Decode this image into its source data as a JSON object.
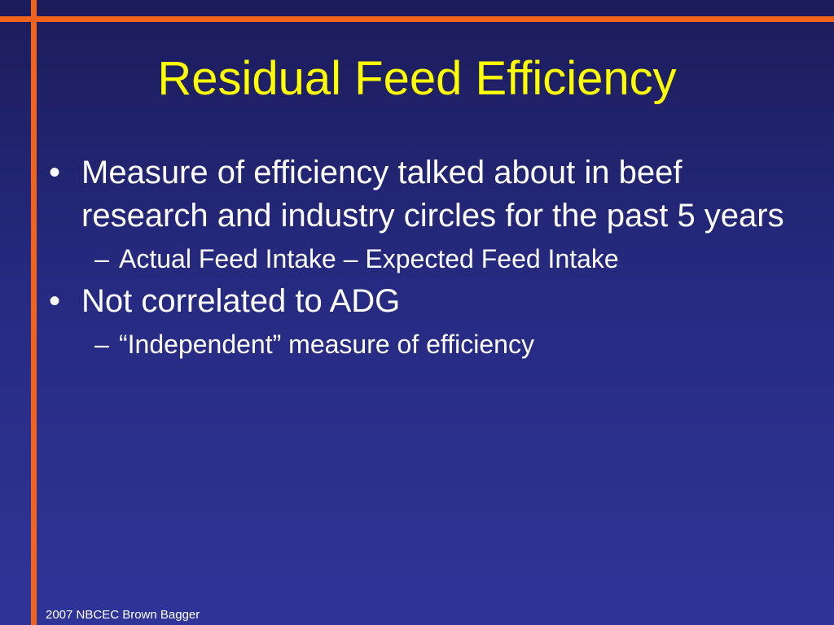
{
  "slide": {
    "title": "Residual Feed Efficiency",
    "bullets": [
      {
        "marker": "•",
        "text": "Measure of efficiency talked about in beef research and industry circles for the past 5 years",
        "sub": [
          {
            "marker": "–",
            "text": "Actual Feed Intake – Expected Feed Intake"
          }
        ]
      },
      {
        "marker": "•",
        "text": "Not correlated to ADG",
        "sub": [
          {
            "marker": "–",
            "text": "“Independent” measure of efficiency"
          }
        ]
      }
    ],
    "footer": "2007 NBCEC Brown Bagger"
  },
  "colors": {
    "background_top": "#1c1c5a",
    "background_bottom": "#2f3598",
    "accent_rule": "#f0641e",
    "title": "#ffff00",
    "body_text": "#ffffff"
  }
}
